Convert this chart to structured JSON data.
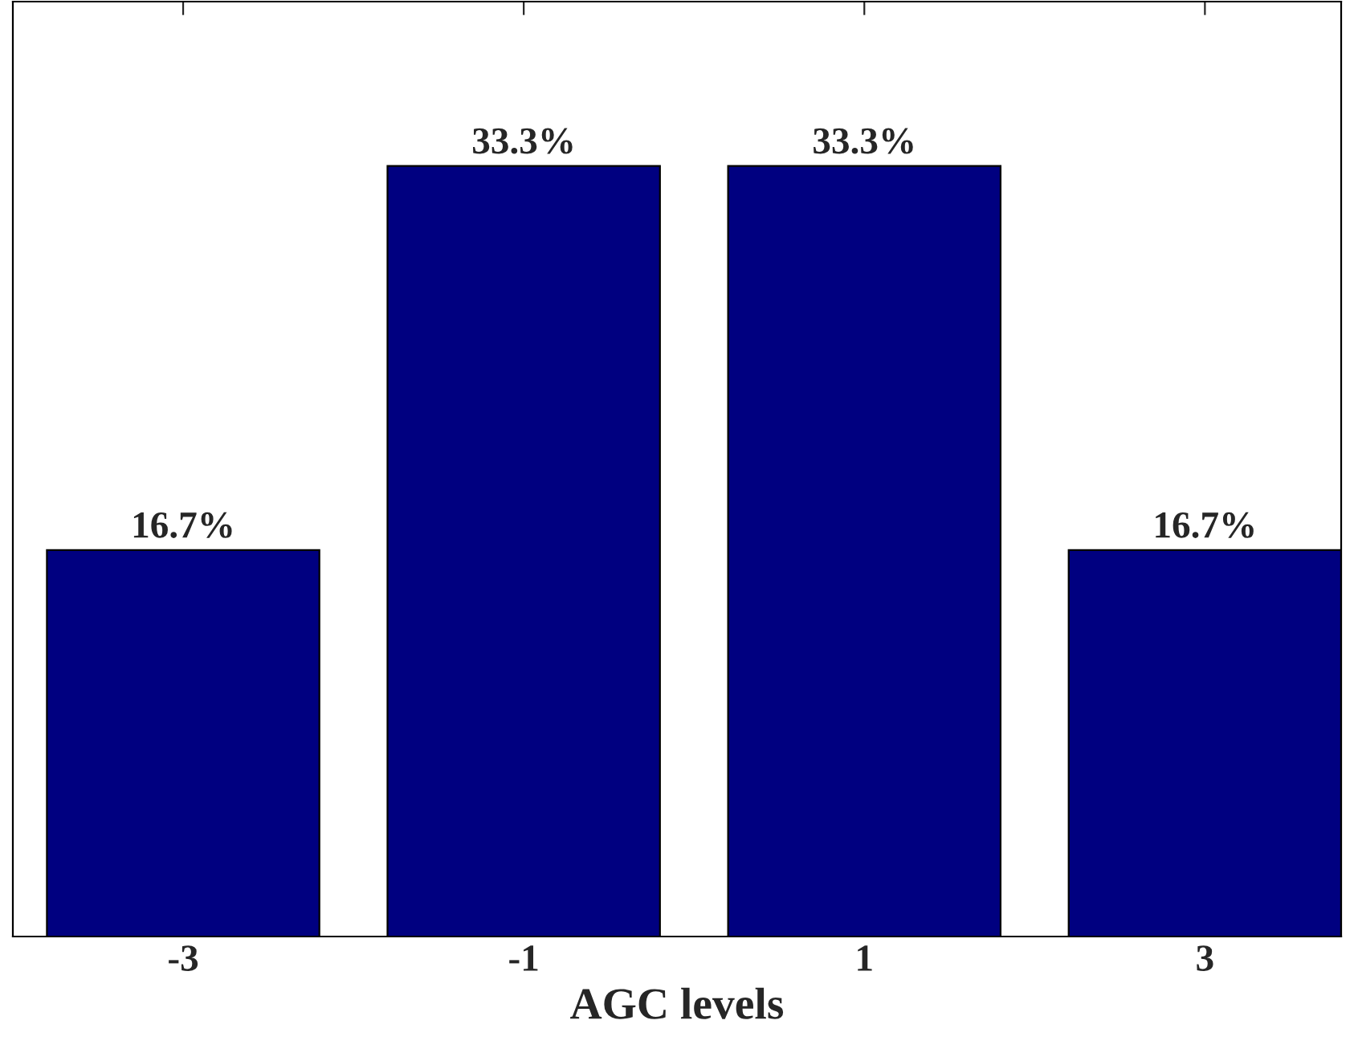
{
  "chart_data": {
    "type": "bar",
    "xlabel": "AGC levels",
    "categories": [
      "-3",
      "-1",
      "1",
      "3"
    ],
    "values": [
      16.7,
      33.3,
      33.3,
      16.7
    ],
    "value_labels": [
      "16.7%",
      "33.3%",
      "33.3%",
      "16.7%"
    ],
    "color": "#000080",
    "ylim": [
      0,
      40.4
    ],
    "tick_labels": "x",
    "grid": false,
    "legend": false
  }
}
